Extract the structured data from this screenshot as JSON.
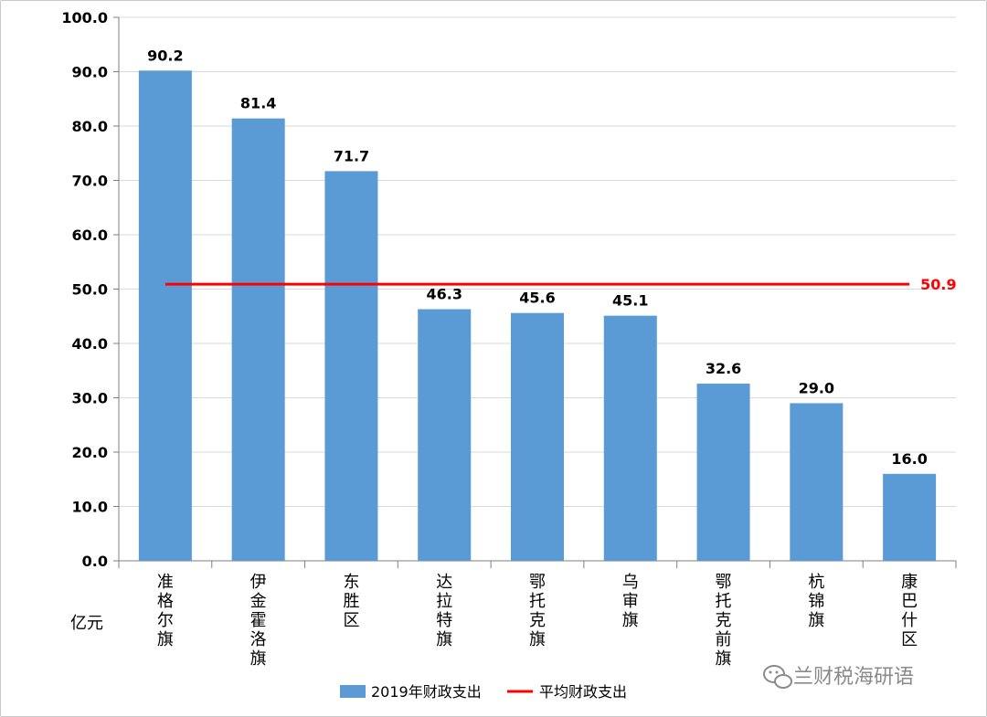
{
  "chart_data": {
    "type": "bar",
    "categories": [
      "准格尔旗",
      "伊金霍洛旗",
      "东胜区",
      "达拉特旗",
      "鄂托克旗",
      "乌审旗",
      "鄂托克前旗",
      "杭锦旗",
      "康巴什区"
    ],
    "series": [
      {
        "name": "2019年财政支出",
        "values": [
          90.2,
          81.4,
          71.7,
          46.3,
          45.6,
          45.1,
          32.6,
          29.0,
          16.0
        ],
        "color": "#5b9bd5"
      }
    ],
    "data_labels": [
      "90.2",
      "81.4",
      "71.7",
      "46.3",
      "45.6",
      "45.1",
      "32.6",
      "29.0",
      "16.0"
    ],
    "average": {
      "name": "平均财政支出",
      "value": 50.9,
      "label": "50.9",
      "color": "#ff0000"
    },
    "ylabel": "亿元",
    "ylim": [
      0,
      100
    ],
    "yticks": [
      0,
      10,
      20,
      30,
      40,
      50,
      60,
      70,
      80,
      90,
      100
    ],
    "ytick_labels": [
      "0.0",
      "10.0",
      "20.0",
      "30.0",
      "40.0",
      "50.0",
      "60.0",
      "70.0",
      "80.0",
      "90.0",
      "100.0"
    ],
    "grid": true,
    "legend_position": "bottom"
  },
  "watermark": {
    "icon": "wechat-icon",
    "text": "兰财税海研语"
  }
}
